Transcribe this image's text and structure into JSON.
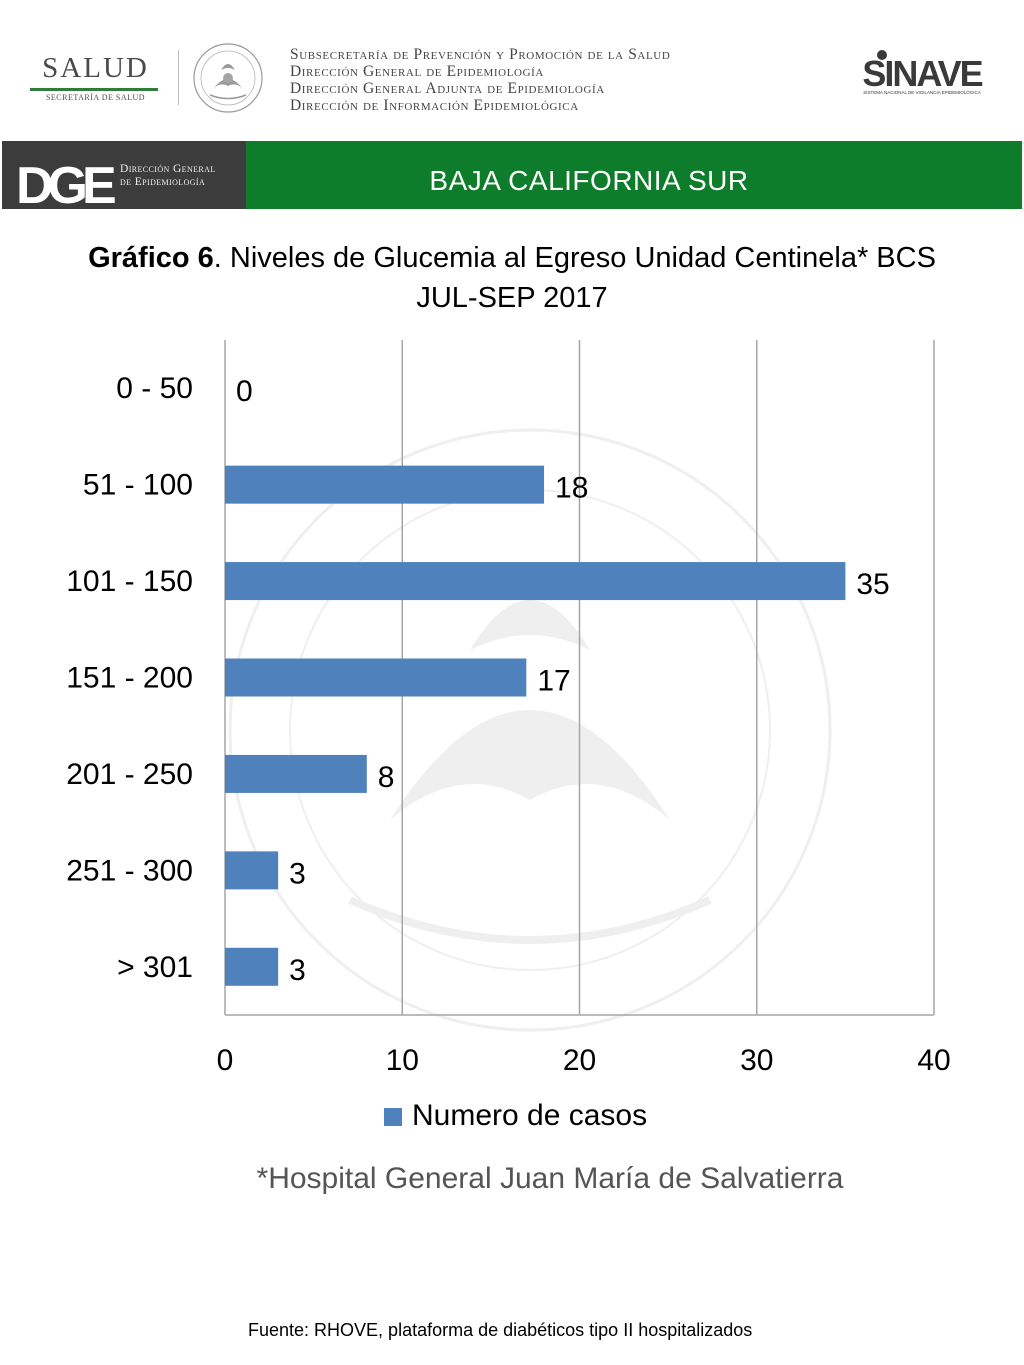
{
  "header": {
    "salud_logo": {
      "word": "SALUD",
      "subtitle": "SECRETARÍA DE SALUD"
    },
    "institution_lines": [
      "Subsecretaría de Prevención y Promoción de la Salud",
      "Dirección General de Epidemiología",
      "Dirección General Adjunta de Epidemiología",
      "Dirección de Información Epidemiológica"
    ],
    "sinave_logo": {
      "word": "SINAVE",
      "subtitle": "SISTEMA NACIONAL DE VIGILANCIA EPIDEMIOLÓGICA"
    }
  },
  "banner": {
    "dge_logo": {
      "letters": "DGE",
      "lines": [
        "Dirección General",
        "de Epidemiología"
      ]
    },
    "state": "BAJA CALIFORNIA SUR",
    "colors": {
      "gray": "#3c3c3c",
      "green": "#0d7d2c"
    }
  },
  "title": {
    "bold": "Gráfico 6",
    "rest": ". Niveles de Glucemia al Egreso  Unidad Centinela* BCS",
    "line2": "JUL-SEP 2017"
  },
  "chart_data": {
    "type": "bar",
    "orientation": "horizontal",
    "categories": [
      "0 - 50",
      "51 - 100",
      "101 - 150",
      "151 - 200",
      "201 - 250",
      "251 - 300",
      "> 301"
    ],
    "series": [
      {
        "name": "Numero de casos",
        "values": [
          0,
          18,
          35,
          17,
          8,
          3,
          3
        ],
        "color": "#4f81bd"
      }
    ],
    "xlim": [
      0,
      40
    ],
    "xticks": [
      0,
      10,
      20,
      30,
      40
    ],
    "grid": "vertical",
    "legend_position": "bottom",
    "data_labels": true
  },
  "footnote": "*Hospital General Juan María de Salvatierra",
  "source": "Fuente: RHOVE, plataforma de diabéticos tipo II hospitalizados"
}
